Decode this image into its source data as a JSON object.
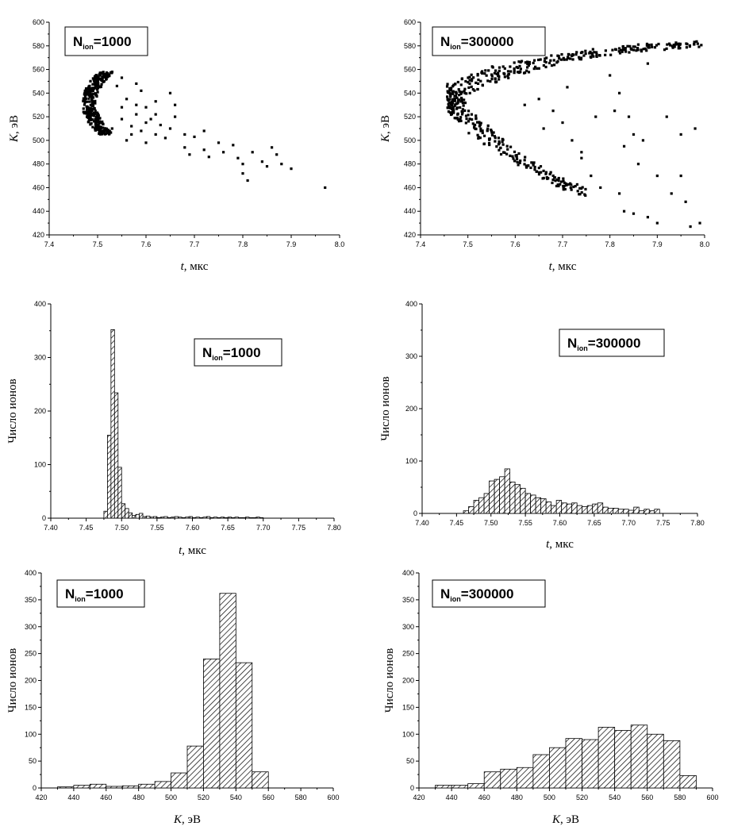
{
  "chart_data": [
    {
      "id": "scatter-1000",
      "type": "scatter",
      "legend": {
        "base": "N",
        "sub": "ion",
        "value": "=1000"
      },
      "xlabel": {
        "italic": "t",
        "rest": ", мкс"
      },
      "ylabel": {
        "italic": "K",
        "rest": ", эВ"
      },
      "xlim": [
        7.4,
        8.0
      ],
      "ylim": [
        420,
        600
      ],
      "xticks": [
        "7.4",
        "7.5",
        "7.6",
        "7.7",
        "7.8",
        "7.9",
        "8.0"
      ],
      "yticks": [
        "420",
        "440",
        "460",
        "480",
        "500",
        "520",
        "540",
        "560",
        "580",
        "600"
      ],
      "cluster": {
        "x_center": 7.49,
        "y_range": [
          505,
          558
        ],
        "count": 320
      },
      "points": [
        [
          7.53,
          558
        ],
        [
          7.55,
          553
        ],
        [
          7.58,
          548
        ],
        [
          7.56,
          535
        ],
        [
          7.58,
          530
        ],
        [
          7.6,
          528
        ],
        [
          7.62,
          522
        ],
        [
          7.55,
          518
        ],
        [
          7.57,
          512
        ],
        [
          7.6,
          515
        ],
        [
          7.63,
          513
        ],
        [
          7.59,
          508
        ],
        [
          7.62,
          505
        ],
        [
          7.65,
          510
        ],
        [
          7.56,
          500
        ],
        [
          7.6,
          498
        ],
        [
          7.64,
          502
        ],
        [
          7.68,
          505
        ],
        [
          7.7,
          503
        ],
        [
          7.72,
          508
        ],
        [
          7.68,
          494
        ],
        [
          7.72,
          492
        ],
        [
          7.75,
          498
        ],
        [
          7.69,
          488
        ],
        [
          7.73,
          486
        ],
        [
          7.76,
          490
        ],
        [
          7.78,
          496
        ],
        [
          7.79,
          485
        ],
        [
          7.8,
          480
        ],
        [
          7.82,
          490
        ],
        [
          7.84,
          482
        ],
        [
          7.85,
          478
        ],
        [
          7.87,
          488
        ],
        [
          7.88,
          480
        ],
        [
          7.9,
          476
        ],
        [
          7.86,
          494
        ],
        [
          7.8,
          472
        ],
        [
          7.81,
          466
        ],
        [
          7.97,
          460
        ],
        [
          7.65,
          540
        ],
        [
          7.62,
          533
        ],
        [
          7.58,
          522
        ],
        [
          7.54,
          546
        ],
        [
          7.61,
          518
        ],
        [
          7.66,
          520
        ],
        [
          7.57,
          505
        ],
        [
          7.53,
          510
        ],
        [
          7.55,
          528
        ],
        [
          7.59,
          542
        ],
        [
          7.66,
          530
        ]
      ]
    },
    {
      "id": "scatter-300000",
      "type": "scatter",
      "legend": {
        "base": "N",
        "sub": "ion",
        "value": "=300000"
      },
      "xlabel": {
        "italic": "t",
        "rest": ", мкс"
      },
      "ylabel": {
        "italic": "K",
        "rest": ", эВ"
      },
      "xlim": [
        7.4,
        8.0
      ],
      "ylim": [
        420,
        600
      ],
      "xticks": [
        "7.4",
        "7.5",
        "7.6",
        "7.7",
        "7.8",
        "7.9",
        "8.0"
      ],
      "yticks": [
        "420",
        "440",
        "460",
        "480",
        "500",
        "520",
        "540",
        "560",
        "580",
        "600"
      ],
      "band": {
        "x_start": 7.46,
        "x_end": 7.99,
        "upper": [
          [
            7.46,
            535
          ],
          [
            7.55,
            555
          ],
          [
            7.65,
            565
          ],
          [
            7.75,
            573
          ],
          [
            7.85,
            578
          ],
          [
            7.99,
            581
          ]
        ],
        "lower": [
          [
            7.46,
            535
          ],
          [
            7.52,
            510
          ],
          [
            7.6,
            485
          ],
          [
            7.7,
            463
          ],
          [
            7.75,
            455
          ]
        ],
        "count": 520
      },
      "points": [
        [
          7.65,
          535
        ],
        [
          7.68,
          525
        ],
        [
          7.7,
          515
        ],
        [
          7.72,
          500
        ],
        [
          7.74,
          485
        ],
        [
          7.76,
          470
        ],
        [
          7.78,
          460
        ],
        [
          7.8,
          555
        ],
        [
          7.82,
          540
        ],
        [
          7.84,
          520
        ],
        [
          7.85,
          505
        ],
        [
          7.83,
          495
        ],
        [
          7.86,
          480
        ],
        [
          7.82,
          455
        ],
        [
          7.83,
          440
        ],
        [
          7.85,
          438
        ],
        [
          7.88,
          435
        ],
        [
          7.9,
          430
        ],
        [
          7.92,
          520
        ],
        [
          7.95,
          505
        ],
        [
          7.96,
          448
        ],
        [
          7.97,
          427
        ],
        [
          7.99,
          430
        ],
        [
          7.98,
          510
        ],
        [
          7.9,
          470
        ],
        [
          7.87,
          500
        ],
        [
          7.77,
          520
        ],
        [
          7.66,
          510
        ],
        [
          7.62,
          530
        ],
        [
          7.71,
          545
        ],
        [
          7.88,
          565
        ],
        [
          7.74,
          490
        ],
        [
          7.93,
          455
        ],
        [
          7.81,
          525
        ],
        [
          7.95,
          470
        ]
      ]
    },
    {
      "id": "hist-t-1000",
      "type": "bar",
      "legend": {
        "base": "N",
        "sub": "ion",
        "value": "=1000"
      },
      "xlabel": {
        "italic": "t",
        "rest": ", мкс"
      },
      "ylabel": {
        "italic": "",
        "rest": "Число ионов"
      },
      "xlim": [
        7.4,
        7.8
      ],
      "ylim": [
        0,
        400
      ],
      "xticks": [
        "7.40",
        "7.45",
        "7.50",
        "7.55",
        "7.60",
        "7.65",
        "7.70",
        "7.75",
        "7.80"
      ],
      "yticks": [
        "0",
        "100",
        "200",
        "300",
        "400"
      ],
      "bin_start": 7.475,
      "bin_width": 0.005,
      "values": [
        13,
        155,
        352,
        234,
        95,
        27,
        18,
        10,
        5,
        7,
        9,
        3,
        4,
        2,
        3,
        1,
        2,
        3,
        1,
        2,
        3,
        2,
        1,
        2,
        3,
        1,
        2,
        1,
        2,
        3,
        1,
        2,
        1,
        2,
        1,
        2,
        1,
        2,
        1,
        1,
        2,
        1,
        1,
        2,
        1
      ]
    },
    {
      "id": "hist-t-300000",
      "type": "bar",
      "legend": {
        "base": "N",
        "sub": "ion",
        "value": "=300000"
      },
      "xlabel": {
        "italic": "t",
        "rest": ", мкс"
      },
      "ylabel": {
        "italic": "",
        "rest": "Число ионов"
      },
      "xlim": [
        7.4,
        7.8
      ],
      "ylim": [
        0,
        400
      ],
      "xticks": [
        "7.40",
        "7.45",
        "7.50",
        "7.55",
        "7.60",
        "7.65",
        "7.70",
        "7.75",
        "7.80"
      ],
      "yticks": [
        "0",
        "100",
        "200",
        "300",
        "400"
      ],
      "bin_start": 7.46,
      "bin_width": 0.0075,
      "values": [
        5,
        13,
        25,
        30,
        38,
        62,
        65,
        70,
        85,
        60,
        55,
        48,
        38,
        35,
        30,
        28,
        22,
        15,
        25,
        20,
        18,
        20,
        15,
        13,
        15,
        18,
        20,
        12,
        10,
        10,
        8,
        8,
        6,
        12,
        5,
        8,
        5,
        8
      ]
    },
    {
      "id": "hist-k-1000",
      "type": "bar",
      "legend": {
        "base": "N",
        "sub": "ion",
        "value": "=1000"
      },
      "xlabel": {
        "italic": "K",
        "rest": ", эВ"
      },
      "ylabel": {
        "italic": "",
        "rest": "Число ионов"
      },
      "xlim": [
        420,
        600
      ],
      "ylim": [
        0,
        400
      ],
      "xticks": [
        "420",
        "440",
        "460",
        "480",
        "500",
        "520",
        "540",
        "560",
        "580",
        "600"
      ],
      "yticks": [
        "0",
        "50",
        "100",
        "150",
        "200",
        "250",
        "300",
        "350",
        "400"
      ],
      "bin_start": 430,
      "bin_width": 10,
      "values": [
        2,
        5,
        7,
        3,
        4,
        7,
        12,
        28,
        78,
        240,
        362,
        233,
        30
      ]
    },
    {
      "id": "hist-k-300000",
      "type": "bar",
      "legend": {
        "base": "N",
        "sub": "ion",
        "value": "=300000"
      },
      "xlabel": {
        "italic": "K",
        "rest": ", эВ"
      },
      "ylabel": {
        "italic": "",
        "rest": "Число ионов"
      },
      "xlim": [
        420,
        600
      ],
      "ylim": [
        0,
        400
      ],
      "xticks": [
        "420",
        "440",
        "460",
        "480",
        "500",
        "520",
        "540",
        "560",
        "580",
        "600"
      ],
      "yticks": [
        "0",
        "50",
        "100",
        "150",
        "200",
        "250",
        "300",
        "350",
        "400"
      ],
      "bin_start": 430,
      "bin_width": 10,
      "values": [
        5,
        5,
        8,
        30,
        35,
        38,
        62,
        75,
        92,
        90,
        113,
        107,
        117,
        100,
        88,
        23
      ]
    }
  ],
  "colors": {
    "marker": "#000000",
    "hatch": "#000000",
    "bar_fill": "#ffffff",
    "axis": "#000000"
  }
}
